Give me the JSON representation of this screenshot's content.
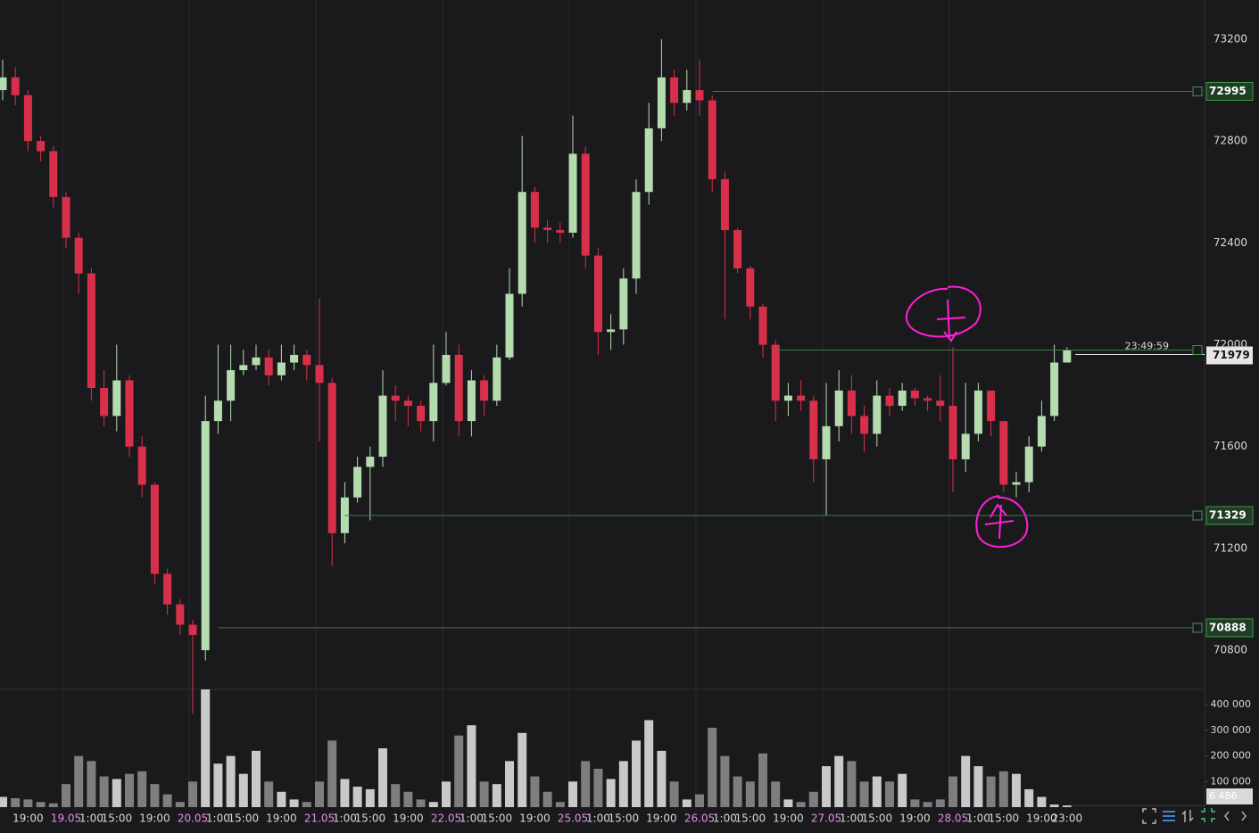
{
  "chart_data": {
    "type": "candlestick",
    "categories": [
      null,
      null,
      "19:00",
      null,
      null,
      "19.05",
      null,
      "1:00",
      null,
      "15:00",
      null,
      null,
      "19:00",
      null,
      null,
      "20.05",
      null,
      "1:00",
      null,
      "15:00",
      null,
      null,
      "19:00",
      null,
      null,
      "21.05",
      null,
      "1:00",
      null,
      "15:00",
      null,
      null,
      "19:00",
      null,
      null,
      "22.05",
      null,
      "1:00",
      null,
      "15:00",
      null,
      null,
      "19:00",
      null,
      null,
      "25.05",
      null,
      "1:00",
      null,
      "15:00",
      null,
      null,
      "19:00",
      null,
      null,
      "26.05",
      null,
      "1:00",
      null,
      "15:00",
      null,
      null,
      "19:00",
      null,
      null,
      "27.05",
      null,
      "1:00",
      null,
      "15:00",
      null,
      null,
      "19:00",
      null,
      null,
      "28.05",
      null,
      "1:00",
      null,
      "15:00",
      null,
      null,
      "19:00",
      null,
      "23:00"
    ],
    "open": [
      73000,
      73050,
      72980,
      72800,
      72760,
      72580,
      72420,
      72280,
      71830,
      71720,
      71860,
      71600,
      71450,
      71100,
      70980,
      70900,
      70800,
      71700,
      71780,
      71900,
      71920,
      71950,
      71880,
      71930,
      71960,
      71920,
      71850,
      71260,
      71400,
      71520,
      71560,
      71800,
      71780,
      71760,
      71700,
      71850,
      71960,
      71700,
      71860,
      71780,
      71950,
      72200,
      72600,
      72460,
      72450,
      72440,
      72750,
      72350,
      72050,
      72060,
      72260,
      72600,
      72850,
      73050,
      72950,
      73000,
      72960,
      72650,
      72450,
      72300,
      72150,
      72000,
      71780,
      71800,
      71780,
      71550,
      71680,
      71820,
      71720,
      71650,
      71800,
      71760,
      71820,
      71790,
      71780,
      71760,
      71550,
      71650,
      71820,
      71700,
      71450,
      71460,
      71600,
      71720,
      71930
    ],
    "high": [
      73120,
      73090,
      73000,
      72820,
      72780,
      72600,
      72440,
      72300,
      71900,
      72000,
      71880,
      71640,
      71460,
      71120,
      71000,
      70920,
      71800,
      72000,
      72000,
      71980,
      72000,
      71980,
      72000,
      72000,
      71980,
      72180,
      71870,
      71460,
      71560,
      71600,
      71900,
      71840,
      71800,
      71780,
      72000,
      72050,
      72000,
      71900,
      71880,
      72000,
      72300,
      72820,
      72620,
      72490,
      72480,
      72900,
      72780,
      72380,
      72120,
      72300,
      72650,
      72950,
      73200,
      73080,
      73080,
      73120,
      72980,
      72680,
      72460,
      72310,
      72160,
      72020,
      71850,
      71860,
      71800,
      71850,
      71900,
      71880,
      71760,
      71860,
      71830,
      71850,
      71830,
      71800,
      71880,
      71990,
      71850,
      71850,
      71820,
      71700,
      71500,
      71640,
      71780,
      72000,
      71990
    ],
    "low": [
      72960,
      72940,
      72760,
      72720,
      72540,
      72380,
      72200,
      71780,
      71680,
      71660,
      71560,
      71400,
      71060,
      70940,
      70860,
      70550,
      70760,
      71650,
      71700,
      71880,
      71900,
      71840,
      71860,
      71900,
      71860,
      71620,
      71130,
      71220,
      71380,
      71310,
      71520,
      71700,
      71680,
      71660,
      71620,
      71840,
      71640,
      71640,
      71720,
      71760,
      71940,
      72150,
      72400,
      72400,
      72400,
      72420,
      72300,
      71960,
      71980,
      72000,
      72200,
      72550,
      72800,
      72900,
      72920,
      72900,
      72600,
      72100,
      72280,
      72100,
      71950,
      71700,
      71720,
      71740,
      71460,
      71330,
      71620,
      71650,
      71580,
      71600,
      71720,
      71740,
      71760,
      71740,
      71700,
      71420,
      71500,
      71620,
      71640,
      71420,
      71400,
      71420,
      71580,
      71700,
      71940
    ],
    "close": [
      73050,
      72980,
      72800,
      72760,
      72580,
      72420,
      72280,
      71830,
      71720,
      71860,
      71600,
      71450,
      71100,
      70980,
      70900,
      70860,
      71700,
      71780,
      71900,
      71920,
      71950,
      71880,
      71930,
      71960,
      71920,
      71850,
      71260,
      71400,
      71520,
      71560,
      71800,
      71780,
      71760,
      71700,
      71850,
      71960,
      71700,
      71860,
      71780,
      71950,
      72200,
      72600,
      72460,
      72450,
      72440,
      72750,
      72350,
      72050,
      72060,
      72260,
      72600,
      72850,
      73050,
      72950,
      73000,
      72960,
      72650,
      72450,
      72300,
      72150,
      72000,
      71780,
      71800,
      71780,
      71550,
      71680,
      71820,
      71720,
      71650,
      71800,
      71760,
      71820,
      71790,
      71780,
      71760,
      71550,
      71650,
      71820,
      71700,
      71450,
      71460,
      71600,
      71720,
      71930,
      71979
    ],
    "volume": [
      40000,
      35000,
      30000,
      20000,
      15000,
      90000,
      200000,
      180000,
      120000,
      110000,
      130000,
      140000,
      90000,
      50000,
      20000,
      100000,
      460000,
      170000,
      200000,
      130000,
      220000,
      100000,
      60000,
      30000,
      20000,
      100000,
      260000,
      110000,
      80000,
      70000,
      230000,
      90000,
      60000,
      30000,
      20000,
      100000,
      280000,
      320000,
      100000,
      90000,
      180000,
      290000,
      120000,
      60000,
      20000,
      100000,
      180000,
      150000,
      110000,
      180000,
      260000,
      340000,
      220000,
      100000,
      30000,
      50000,
      310000,
      200000,
      120000,
      100000,
      210000,
      100000,
      30000,
      20000,
      60000,
      160000,
      200000,
      180000,
      100000,
      120000,
      100000,
      130000,
      30000,
      20000,
      30000,
      120000,
      200000,
      160000,
      120000,
      140000,
      130000,
      70000,
      40000,
      10000,
      6486
    ],
    "current_volume_label": "6 486",
    "up_color": "#b4dcae",
    "down_color": "#d8304a",
    "ylim": [
      70646,
      73354
    ],
    "yticks": [
      73200,
      73000,
      72800,
      72600,
      72400,
      72200,
      72000,
      71800,
      71600,
      71400,
      71200,
      71000,
      70800
    ],
    "tick_labels_every": 2,
    "volume_ylim": [
      0,
      460000
    ],
    "volume_ticks": [
      {
        "value": 400000,
        "label": "400 000"
      },
      {
        "value": 300000,
        "label": "300 000"
      },
      {
        "value": 200000,
        "label": "200 000"
      },
      {
        "value": 100000,
        "label": "100 000"
      }
    ],
    "levels": [
      72995,
      71329,
      70888
    ],
    "current_price": 71979,
    "countdown": "23:49:59"
  }
}
